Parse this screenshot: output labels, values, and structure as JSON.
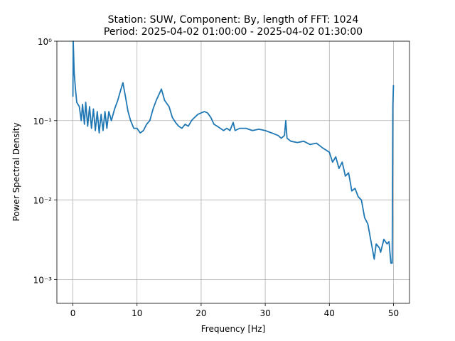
{
  "chart_data": {
    "type": "line",
    "title": [
      "Station: SUW, Component: By, length of FFT: 1024",
      "Period: 2025-04-02 01:00:00 - 2025-04-02 01:30:00"
    ],
    "xlabel": "Frequency [Hz]",
    "ylabel": "Power Spectral Density",
    "log_y": true,
    "grid": true,
    "color": "#1f77b4",
    "xlim": [
      -2.5,
      52.5
    ],
    "xticks": [
      0,
      10,
      20,
      30,
      40,
      50
    ],
    "ylim": [
      0.0005,
      1
    ],
    "yticks": [
      {
        "value": 0.001,
        "label": "10⁻³"
      },
      {
        "value": 0.01,
        "label": "10⁻²"
      },
      {
        "value": 0.1,
        "label": "10⁻¹"
      },
      {
        "value": 1,
        "label": "10⁰"
      }
    ],
    "x": [
      0,
      0.05,
      0.2,
      0.4,
      0.6,
      1,
      1.3,
      1.5,
      1.8,
      2,
      2.3,
      2.6,
      2.9,
      3.2,
      3.5,
      3.8,
      4.1,
      4.4,
      4.7,
      5,
      5.3,
      5.6,
      6,
      6.5,
      7,
      7.5,
      7.8,
      8.2,
      8.6,
      9,
      9.5,
      10,
      10.5,
      11,
      11.5,
      12,
      12.5,
      13,
      13.5,
      13.8,
      14.3,
      15,
      15.5,
      16,
      16.5,
      17,
      17.5,
      18,
      18.5,
      19,
      19.5,
      20,
      20.5,
      21,
      21.5,
      22,
      22.5,
      23,
      23.5,
      24,
      24.5,
      25,
      25.3,
      26,
      27,
      28,
      29,
      30,
      31,
      32,
      32.5,
      33,
      33.2,
      33.4,
      34,
      35,
      36,
      37,
      38,
      39,
      40,
      40.5,
      41,
      41.5,
      42,
      42.5,
      43,
      43.5,
      44,
      44.5,
      45,
      45.5,
      46,
      46.5,
      47,
      47.3,
      47.8,
      48,
      48.5,
      49,
      49.3,
      49.6,
      49.8,
      49.9,
      50
    ],
    "values": [
      0.2,
      1.0,
      0.4,
      0.25,
      0.17,
      0.15,
      0.1,
      0.16,
      0.09,
      0.17,
      0.085,
      0.15,
      0.08,
      0.14,
      0.075,
      0.13,
      0.07,
      0.12,
      0.075,
      0.13,
      0.08,
      0.13,
      0.1,
      0.14,
      0.18,
      0.25,
      0.3,
      0.2,
      0.13,
      0.1,
      0.08,
      0.08,
      0.07,
      0.075,
      0.09,
      0.1,
      0.14,
      0.18,
      0.22,
      0.25,
      0.18,
      0.15,
      0.11,
      0.095,
      0.085,
      0.08,
      0.09,
      0.085,
      0.1,
      0.11,
      0.12,
      0.125,
      0.13,
      0.125,
      0.11,
      0.09,
      0.085,
      0.08,
      0.075,
      0.08,
      0.075,
      0.095,
      0.075,
      0.08,
      0.08,
      0.075,
      0.078,
      0.075,
      0.07,
      0.065,
      0.06,
      0.065,
      0.1,
      0.06,
      0.055,
      0.053,
      0.055,
      0.05,
      0.052,
      0.045,
      0.04,
      0.03,
      0.035,
      0.025,
      0.03,
      0.02,
      0.022,
      0.013,
      0.014,
      0.011,
      0.01,
      0.006,
      0.005,
      0.003,
      0.0018,
      0.0028,
      0.0025,
      0.0022,
      0.0032,
      0.0028,
      0.003,
      0.0016,
      0.0016,
      0.15,
      0.28
    ]
  }
}
